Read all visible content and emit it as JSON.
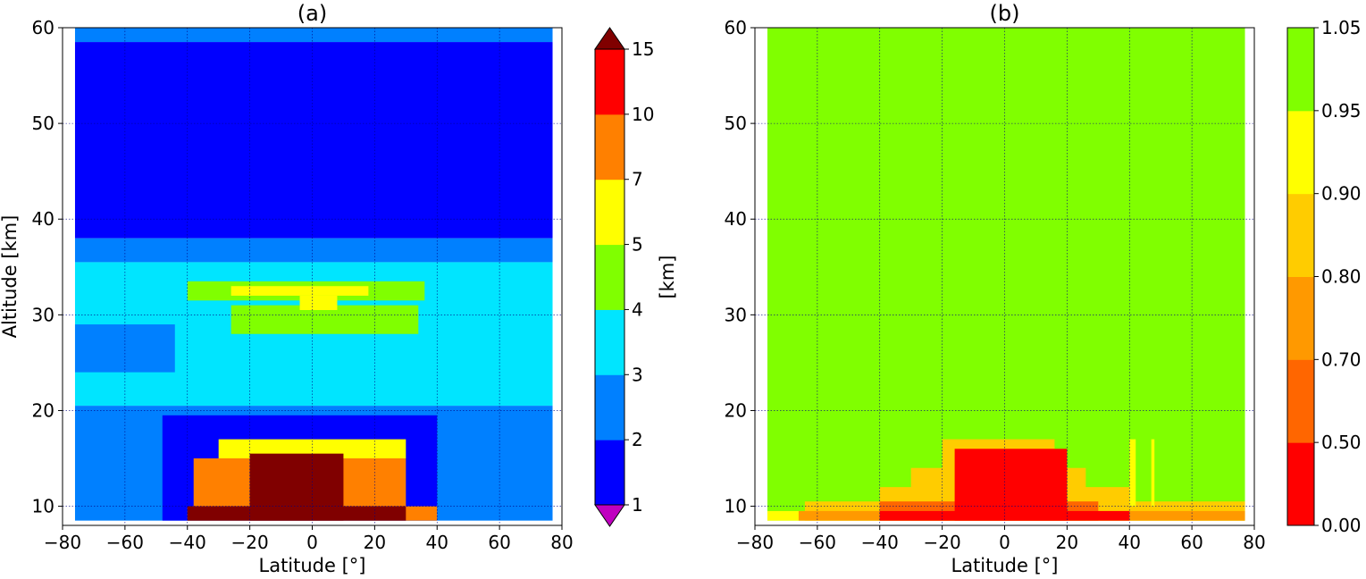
{
  "chart_data": [
    {
      "type": "heatmap",
      "title": "(a)",
      "xlabel": "Latitude [°]",
      "ylabel": "Altitude [km]",
      "xlim": [
        -80,
        80
      ],
      "ylim": [
        8,
        60
      ],
      "xticks": [
        -80,
        -60,
        -40,
        -20,
        0,
        20,
        40,
        60,
        80
      ],
      "xtick_labels": [
        "−80",
        "−60",
        "−40",
        "−20",
        "0",
        "20",
        "40",
        "60",
        "80"
      ],
      "yticks": [
        10,
        20,
        30,
        40,
        50,
        60
      ],
      "ytick_labels": [
        "10",
        "20",
        "30",
        "40",
        "50",
        "60"
      ],
      "grid": true,
      "colorbar": {
        "label": "[km]",
        "bounds": [
          1,
          2,
          3,
          4,
          5,
          7,
          10,
          15
        ],
        "tick_labels": [
          "1",
          "2",
          "3",
          "4",
          "5",
          "7",
          "10",
          "15"
        ],
        "colors": [
          "#0000ff",
          "#0080ff",
          "#00e5ff",
          "#80ff00",
          "#ffff00",
          "#ff8000",
          "#ff0000"
        ],
        "extend": "both",
        "under_color": "#c000c0",
        "over_color": "#800000"
      },
      "bands": [
        {
          "lat": [
            -76,
            77
          ],
          "alt": [
            58.5,
            60
          ],
          "value": 2.5
        },
        {
          "lat": [
            -76,
            77
          ],
          "alt": [
            38,
            58.5
          ],
          "value": 1.5
        },
        {
          "lat": [
            -76,
            77
          ],
          "alt": [
            35.5,
            38
          ],
          "value": 2.5
        },
        {
          "lat": [
            -76,
            77
          ],
          "alt": [
            20.5,
            35.5
          ],
          "value": 3.5
        },
        {
          "lat": [
            -76,
            77
          ],
          "alt": [
            8.5,
            20.5
          ],
          "value": 2.5
        },
        {
          "lat": [
            -48,
            40
          ],
          "alt": [
            8.5,
            19.5
          ],
          "value": 1.5
        },
        {
          "lat": [
            -38,
            -28
          ],
          "alt": [
            30.5,
            32
          ],
          "value": 3.5
        },
        {
          "lat": [
            -26,
            34
          ],
          "alt": [
            28,
            31
          ],
          "value": 4.5
        },
        {
          "lat": [
            -40,
            36
          ],
          "alt": [
            31.5,
            33.5
          ],
          "value": 4.5
        },
        {
          "lat": [
            -26,
            18
          ],
          "alt": [
            32,
            33
          ],
          "value": 6
        },
        {
          "lat": [
            -4,
            8
          ],
          "alt": [
            30.5,
            32
          ],
          "value": 6
        },
        {
          "lat": [
            -76,
            -44
          ],
          "alt": [
            24,
            29
          ],
          "value": 2.5
        },
        {
          "lat": [
            -30,
            30
          ],
          "alt": [
            15,
            17
          ],
          "value": 6
        },
        {
          "lat": [
            -38,
            30
          ],
          "alt": [
            10,
            15
          ],
          "value": 8.5
        },
        {
          "lat": [
            -40,
            40
          ],
          "alt": [
            8.5,
            10
          ],
          "value": 8.5
        },
        {
          "lat": [
            -20,
            10
          ],
          "alt": [
            8.5,
            15.5
          ],
          "value": 20
        },
        {
          "lat": [
            -40,
            30
          ],
          "alt": [
            8.5,
            10
          ],
          "value": 20
        }
      ]
    },
    {
      "type": "heatmap",
      "title": "(b)",
      "xlabel": "Latitude [°]",
      "ylabel": "",
      "xlim": [
        -80,
        80
      ],
      "ylim": [
        8,
        60
      ],
      "xticks": [
        -80,
        -60,
        -40,
        -20,
        0,
        20,
        40,
        60,
        80
      ],
      "xtick_labels": [
        "−80",
        "−60",
        "−40",
        "−20",
        "0",
        "20",
        "40",
        "60",
        "80"
      ],
      "yticks": [
        10,
        20,
        30,
        40,
        50,
        60
      ],
      "ytick_labels": [
        "10",
        "20",
        "30",
        "40",
        "50",
        "60"
      ],
      "grid": true,
      "colorbar": {
        "label": "",
        "bounds": [
          0,
          0.5,
          0.7,
          0.8,
          0.9,
          0.95,
          1.05
        ],
        "tick_labels": [
          "0.00",
          "0.50",
          "0.70",
          "0.80",
          "0.90",
          "0.95",
          "1.05"
        ],
        "colors": [
          "#ff0000",
          "#ff6600",
          "#ff9900",
          "#ffcc00",
          "#ffff00",
          "#80ff00"
        ],
        "extend": "neither"
      },
      "bands": [
        {
          "lat": [
            -76,
            77
          ],
          "alt": [
            8.5,
            60
          ],
          "value": 1.0
        },
        {
          "lat": [
            -76,
            77
          ],
          "alt": [
            8.5,
            9.5
          ],
          "value": 0.925
        },
        {
          "lat": [
            -64,
            77
          ],
          "alt": [
            8.5,
            10.5
          ],
          "value": 0.85
        },
        {
          "lat": [
            -40,
            40
          ],
          "alt": [
            8.5,
            12
          ],
          "value": 0.85
        },
        {
          "lat": [
            -30,
            26
          ],
          "alt": [
            8.5,
            14
          ],
          "value": 0.85
        },
        {
          "lat": [
            -20,
            16
          ],
          "alt": [
            8.5,
            17
          ],
          "value": 0.85
        },
        {
          "lat": [
            -66,
            77
          ],
          "alt": [
            8.5,
            9.5
          ],
          "value": 0.75
        },
        {
          "lat": [
            -40,
            30
          ],
          "alt": [
            8.5,
            10.5
          ],
          "value": 0.6
        },
        {
          "lat": [
            -16,
            20
          ],
          "alt": [
            8.5,
            16
          ],
          "value": 0.25
        },
        {
          "lat": [
            -40,
            40
          ],
          "alt": [
            8.5,
            9.5
          ],
          "value": 0.25
        },
        {
          "lat": [
            40,
            42
          ],
          "alt": [
            10,
            17
          ],
          "value": 0.925
        },
        {
          "lat": [
            47,
            48
          ],
          "alt": [
            10,
            17
          ],
          "value": 0.925
        }
      ]
    }
  ]
}
